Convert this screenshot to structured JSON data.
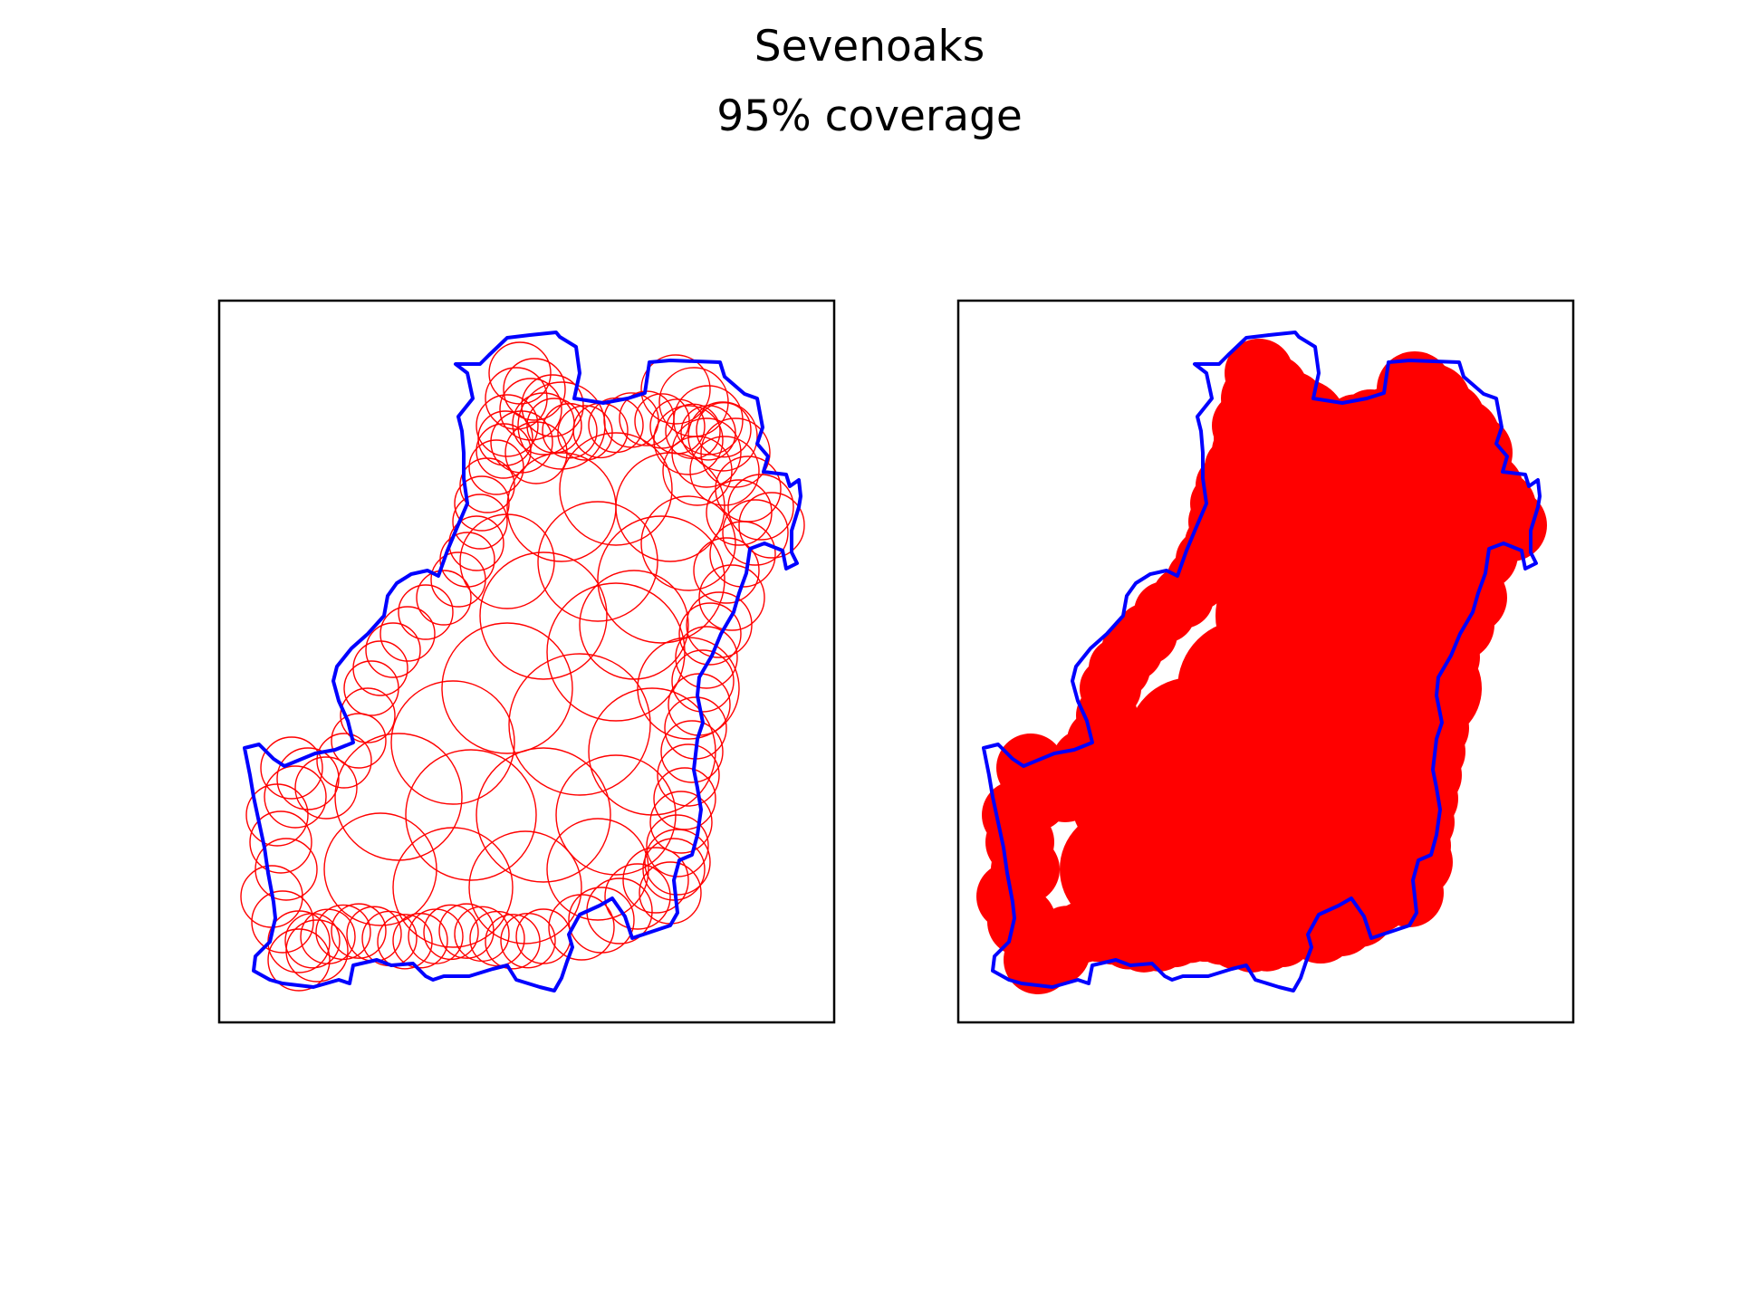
{
  "figure": {
    "title": "Sevenoaks",
    "subtitle": "95% coverage"
  },
  "colors": {
    "boundary": "#0000ff",
    "circles": "#ff0000",
    "frame": "#000000",
    "background": "#ffffff"
  },
  "panels": [
    {
      "name": "circles-outline-panel",
      "style": "outline"
    },
    {
      "name": "circles-filled-panel",
      "style": "filled"
    }
  ]
}
